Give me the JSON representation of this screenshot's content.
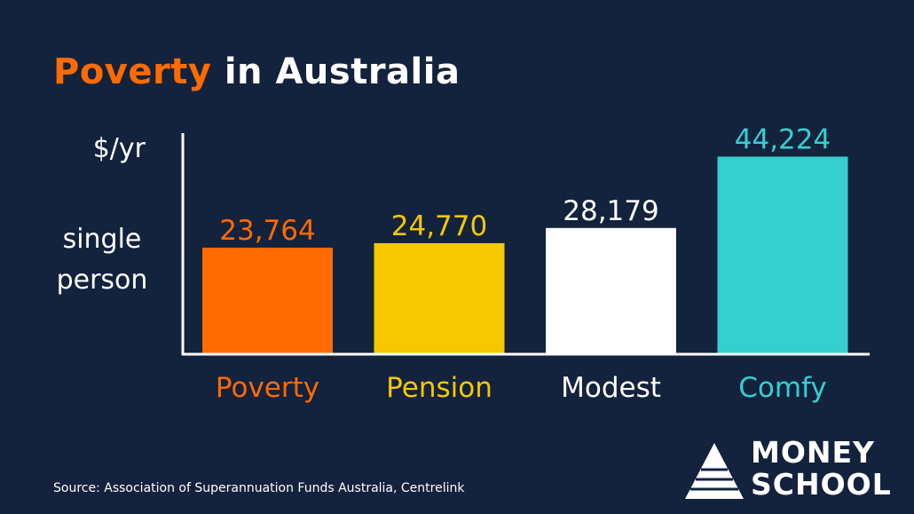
{
  "title": {
    "highlight": "Poverty",
    "rest": " in Australia"
  },
  "y_axis": {
    "unit": "$/yr",
    "desc_line1": "single",
    "desc_line2": "person"
  },
  "chart_data": {
    "type": "bar",
    "categories": [
      "Poverty",
      "Pension",
      "Modest",
      "Comfy"
    ],
    "values": [
      23764,
      24770,
      28179,
      44224
    ],
    "data_labels": [
      "23,764",
      "24,770",
      "28,179",
      "44,224"
    ],
    "colors": [
      "#ff6b00",
      "#f5c800",
      "#ffffff",
      "#35cfd0"
    ],
    "ylabel": "$/yr",
    "ylim": [
      0,
      49500
    ],
    "grid": false
  },
  "source": "Source: Association of Superannuation Funds Australia, Centrelink",
  "brand": {
    "line1": "MONEY",
    "line2": "SCHOOL",
    "logo_icon": "pyramid-icon"
  },
  "colors": {
    "background": "#13223d",
    "accent": "#ff6b00"
  }
}
